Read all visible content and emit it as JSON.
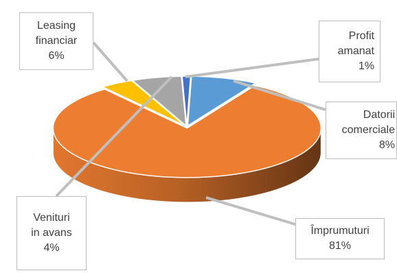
{
  "chart_data": {
    "type": "pie",
    "title": "",
    "style": "3d-exploded",
    "legend": "none",
    "categories": [
      "Datorii comerciale",
      "Împrumuturi",
      "Venituri in avans",
      "Leasing financiar",
      "Profit amanat"
    ],
    "values": [
      8,
      81,
      4,
      6,
      1
    ],
    "colors": [
      "#5B9BD5",
      "#ED7D31",
      "#FFC000",
      "#A5A5A5",
      "#4472C4"
    ],
    "data_labels": [
      {
        "lines": [
          "Datorii",
          "comerciale"
        ],
        "percent": "8%"
      },
      {
        "lines": [
          "Împrumuturi"
        ],
        "percent": "81%"
      },
      {
        "lines": [
          "Venituri",
          "in avans"
        ],
        "percent": "4%"
      },
      {
        "lines": [
          "Leasing",
          "financiar"
        ],
        "percent": "6%"
      },
      {
        "lines": [
          "Profit",
          "amanat"
        ],
        "percent": "1%"
      }
    ]
  }
}
